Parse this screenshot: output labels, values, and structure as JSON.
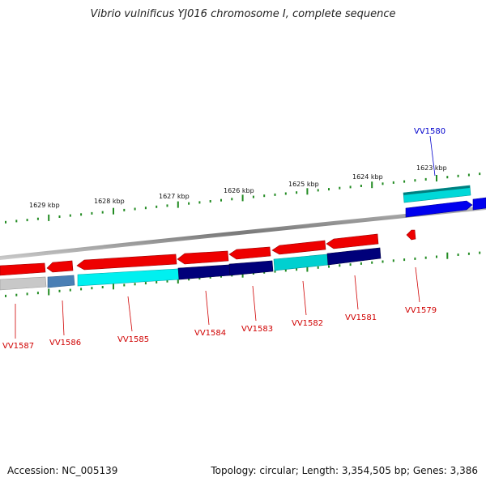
{
  "title": "Vibrio vulnificus YJ016 chromosome I, complete sequence",
  "footer": {
    "accession": "Accession: NC_005139",
    "summary": "Topology: circular; Length: 3,354,505 bp; Genes: 3,386"
  },
  "ticks": [
    "1629 kbp",
    "1628 kbp",
    "1627 kbp",
    "1626 kbp",
    "1625 kbp",
    "1624 kbp",
    "1623 kbp"
  ],
  "genes": [
    "VV1587",
    "VV1586",
    "VV1585",
    "VV1584",
    "VV1583",
    "VV1582",
    "VV1581",
    "VV1579",
    "VV1580"
  ],
  "colors": {
    "forward_red": "#ff0000",
    "cyan": "#00e5e5",
    "navy": "#000080",
    "blue": "#0000ff",
    "steel": "#4682b4",
    "grey": "#c0c0c0",
    "tick_green": "#228b22",
    "backbone": "#808080"
  }
}
